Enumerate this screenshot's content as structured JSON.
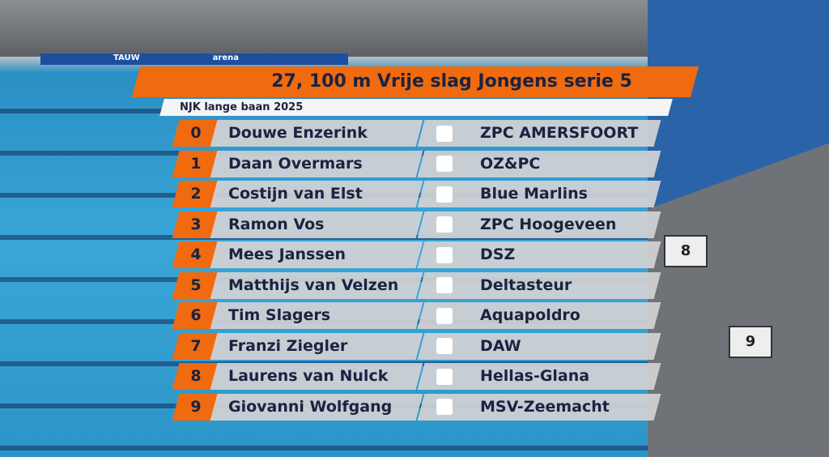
{
  "header": {
    "title": "27, 100 m Vrije slag Jongens serie 5",
    "subtitle": "NJK lange baan 2025"
  },
  "rows": [
    {
      "lane": "0",
      "name": "Douwe Enzerink",
      "club": "ZPC AMERSFOORT"
    },
    {
      "lane": "1",
      "name": "Daan Overmars",
      "club": "OZ&PC"
    },
    {
      "lane": "2",
      "name": "Costijn van Elst",
      "club": "Blue Marlins"
    },
    {
      "lane": "3",
      "name": "Ramon Vos",
      "club": "ZPC Hoogeveen"
    },
    {
      "lane": "4",
      "name": "Mees Janssen",
      "club": "DSZ"
    },
    {
      "lane": "5",
      "name": "Matthijs van Velzen",
      "club": "Deltasteur"
    },
    {
      "lane": "6",
      "name": "Tim Slagers",
      "club": "Aquapoldro"
    },
    {
      "lane": "7",
      "name": "Franzi Ziegler",
      "club": "DAW"
    },
    {
      "lane": "8",
      "name": "Laurens van Nulck",
      "club": "Hellas-Glana"
    },
    {
      "lane": "9",
      "name": "Giovanni Wolfgang",
      "club": "MSV-Zeemacht"
    }
  ],
  "scene": {
    "banners": [
      "TAUW",
      "arena"
    ],
    "block_numbers": [
      "8",
      "9"
    ]
  }
}
